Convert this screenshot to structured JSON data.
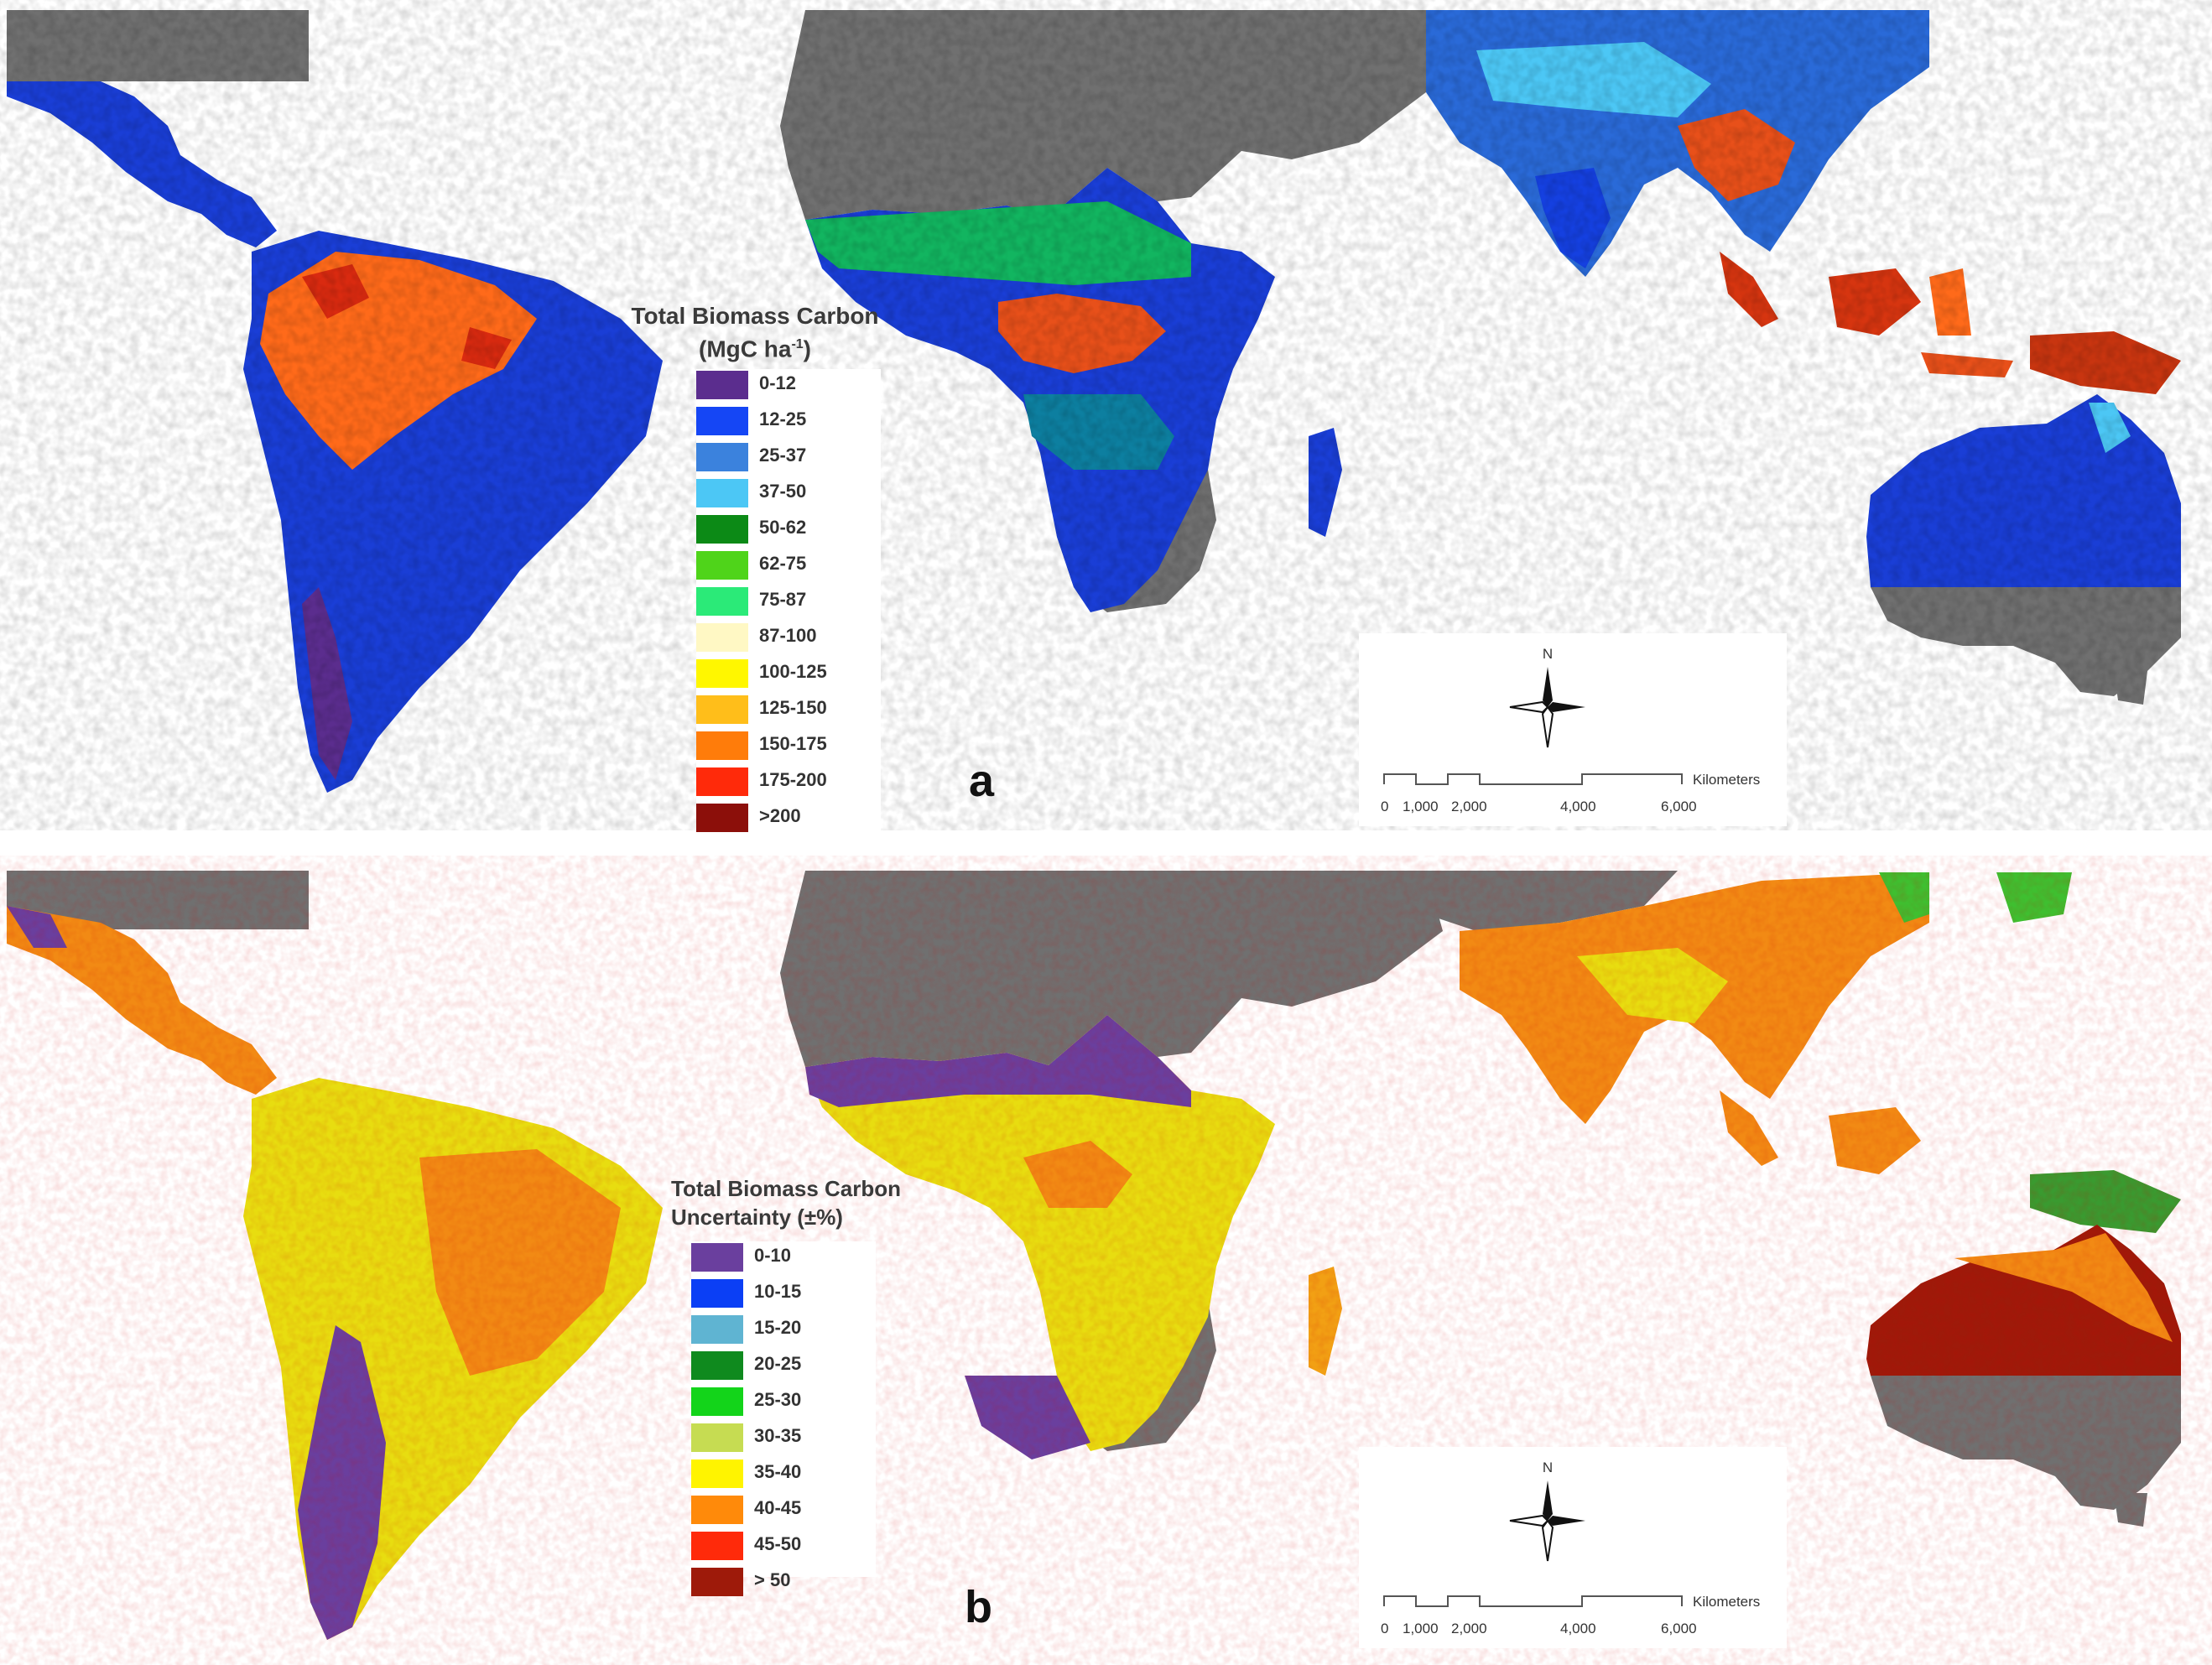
{
  "panels": [
    {
      "letter": "a",
      "legend": {
        "title_line1": "Total Biomass Carbon",
        "title_line2": "(MgC ha",
        "title_sup": "-1",
        "title_close": ")",
        "classes": [
          {
            "label": "0-12",
            "color": "#5b2d8e"
          },
          {
            "label": "12-25",
            "color": "#1546f5"
          },
          {
            "label": "25-37",
            "color": "#3b82dd"
          },
          {
            "label": "37-50",
            "color": "#4cc7f5"
          },
          {
            "label": "50-62",
            "color": "#0c8a16"
          },
          {
            "label": "62-75",
            "color": "#4fd41a"
          },
          {
            "label": "75-87",
            "color": "#2bea78"
          },
          {
            "label": "87-100",
            "color": "#fff8c4"
          },
          {
            "label": "100-125",
            "color": "#fff700"
          },
          {
            "label": "125-150",
            "color": "#ffbe1a"
          },
          {
            "label": "150-175",
            "color": "#ff7c0a"
          },
          {
            "label": "175-200",
            "color": "#ff2a0a"
          },
          {
            "label": ">200",
            "color": "#8c0f0a"
          }
        ]
      },
      "north_label": "N",
      "scale": {
        "unit": "Kilometers",
        "ticks": [
          "0",
          "1,000",
          "2,000",
          "4,000",
          "6,000"
        ]
      }
    },
    {
      "letter": "b",
      "legend": {
        "title_line1": "Total Biomass Carbon",
        "title_line2": "Uncertainty (±%)",
        "classes": [
          {
            "label": "0-10",
            "color": "#6a3f9e"
          },
          {
            "label": "10-15",
            "color": "#0b3ff5"
          },
          {
            "label": "15-20",
            "color": "#5fb4d2"
          },
          {
            "label": "20-25",
            "color": "#0f8a1e"
          },
          {
            "label": "25-30",
            "color": "#13d41a"
          },
          {
            "label": "30-35",
            "color": "#c6dc52"
          },
          {
            "label": "35-40",
            "color": "#fff400"
          },
          {
            "label": "40-45",
            "color": "#ff8a0a"
          },
          {
            "label": "45-50",
            "color": "#ff2a0a"
          },
          {
            "label": "> 50",
            "color": "#9e1a0a"
          }
        ]
      },
      "north_label": "N",
      "scale": {
        "unit": "Kilometers",
        "ticks": [
          "0",
          "1,000",
          "2,000",
          "4,000",
          "6,000"
        ]
      }
    }
  ],
  "colors": {
    "background": "#ffffff",
    "non_tropical_land": "#707070",
    "water": "#ffffff"
  }
}
